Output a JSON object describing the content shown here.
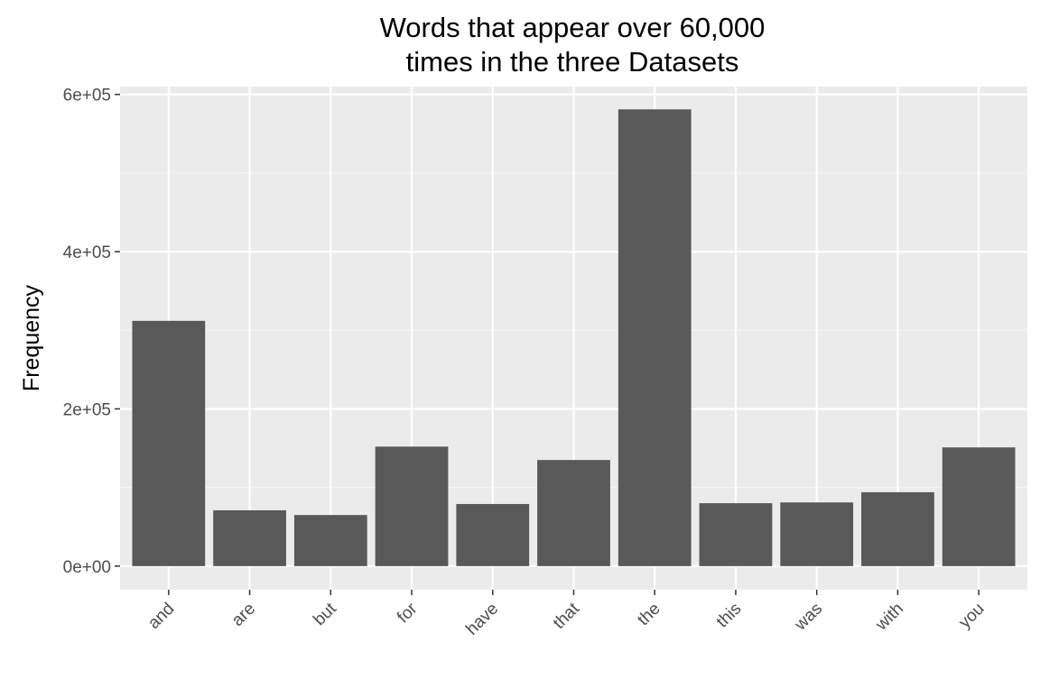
{
  "chart_data": {
    "type": "bar",
    "title": "Words that appear over 60,000 times in the three Datasets",
    "title_lines": [
      "Words that appear over 60,000",
      "times in the three Datasets"
    ],
    "xlabel": "",
    "ylabel": "Frequency",
    "categories": [
      "and",
      "are",
      "but",
      "for",
      "have",
      "that",
      "the",
      "this",
      "was",
      "with",
      "you"
    ],
    "values": [
      312000,
      71000,
      65000,
      152000,
      79000,
      135000,
      581000,
      80000,
      81000,
      94000,
      151000
    ],
    "ylim": [
      -30000,
      610000
    ],
    "yticks": [
      0,
      200000,
      400000,
      600000
    ],
    "ytick_labels": [
      "0e+00",
      "2e+05",
      "4e+05",
      "6e+05"
    ],
    "grid": true,
    "x_tick_rotation": "45 degrees",
    "legend": "none",
    "colors": {
      "panel_background": "#ebebeb",
      "grid_major": "#ffffff",
      "grid_minor": "#f5f5f5",
      "bar_fill": "#595959",
      "tick_text": "#4d4d4d",
      "title_text": "#000000"
    }
  }
}
